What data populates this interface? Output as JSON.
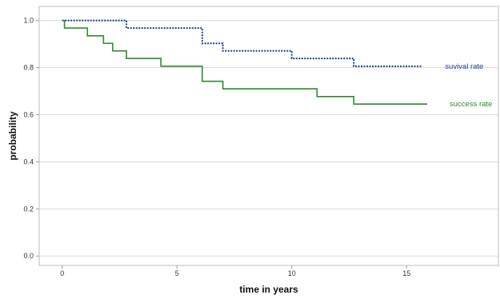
{
  "chart_data": {
    "type": "line",
    "title": "",
    "xlabel": "time in years",
    "ylabel": "probability",
    "xlim": [
      -1,
      19
    ],
    "ylim": [
      -0.04,
      1.06
    ],
    "xticks": [
      0,
      5,
      10,
      15
    ],
    "xtick_labels": [
      "0",
      "5",
      "10",
      "15"
    ],
    "yticks": [
      0.0,
      0.2,
      0.4,
      0.6,
      0.8,
      1.0
    ],
    "ytick_labels": [
      "0.0",
      "0.2",
      "0.4",
      "0.6",
      "0.8",
      "1.0"
    ],
    "grid": "horizontal",
    "step": true,
    "series": [
      {
        "name": "suvival rate",
        "color": "#1f3f8f",
        "style": "dotted",
        "x": [
          0,
          2.8,
          6.1,
          7.0,
          10.0,
          12.7,
          15.7
        ],
        "y": [
          1.0,
          0.968,
          0.903,
          0.871,
          0.839,
          0.806,
          0.806
        ]
      },
      {
        "name": "success rate",
        "color": "#2e8b2e",
        "style": "solid",
        "x": [
          0,
          0.1,
          1.1,
          1.8,
          2.2,
          2.8,
          4.3,
          6.1,
          7.0,
          11.1,
          12.7,
          15.9
        ],
        "y": [
          1.0,
          0.968,
          0.935,
          0.903,
          0.871,
          0.839,
          0.806,
          0.742,
          0.71,
          0.677,
          0.645,
          0.645
        ]
      }
    ]
  }
}
